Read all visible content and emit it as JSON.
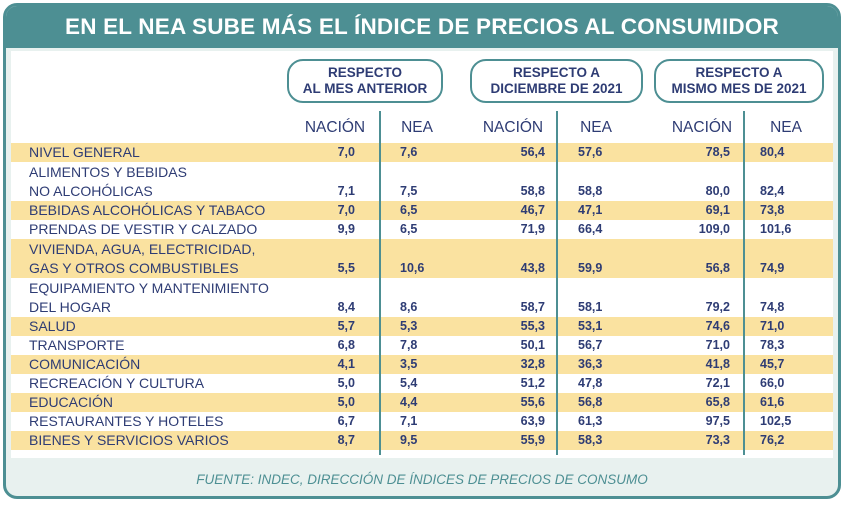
{
  "title": "EN EL NEA SUBE MÁS EL ÍNDICE DE PRECIOS AL CONSUMIDOR",
  "groups": [
    {
      "label": "RESPECTO\nAL MES ANTERIOR"
    },
    {
      "label": "RESPECTO A\nDICIEMBRE DE 2021"
    },
    {
      "label": "RESPECTO A\nMISMO MES DE 2021"
    }
  ],
  "sub_headers": [
    "NACIÓN",
    "NEA",
    "NACIÓN",
    "NEA",
    "NACIÓN",
    "NEA"
  ],
  "rows": [
    {
      "label": "NIVEL GENERAL",
      "values": [
        "7,0",
        "7,6",
        "56,4",
        "57,6",
        "78,5",
        "80,4"
      ]
    },
    {
      "label": "ALIMENTOS Y BEBIDAS\nNO ALCOHÓLICAS",
      "values": [
        "7,1",
        "7,5",
        "58,8",
        "58,8",
        "80,0",
        "82,4"
      ]
    },
    {
      "label": "BEBIDAS ALCOHÓLICAS Y TABACO",
      "values": [
        "7,0",
        "6,5",
        "46,7",
        "47,1",
        "69,1",
        "73,8"
      ]
    },
    {
      "label": "PRENDAS DE VESTIR Y CALZADO",
      "values": [
        "9,9",
        "6,5",
        "71,9",
        "66,4",
        "109,0",
        "101,6"
      ]
    },
    {
      "label": "VIVIENDA, AGUA, ELECTRICIDAD,\nGAS Y OTROS COMBUSTIBLES",
      "values": [
        "5,5",
        "10,6",
        "43,8",
        "59,9",
        "56,8",
        "74,9"
      ]
    },
    {
      "label": "EQUIPAMIENTO Y MANTENIMIENTO\nDEL HOGAR",
      "values": [
        "8,4",
        "8,6",
        "58,7",
        "58,1",
        "79,2",
        "74,8"
      ]
    },
    {
      "label": "SALUD",
      "values": [
        "5,7",
        "5,3",
        "55,3",
        "53,1",
        "74,6",
        "71,0"
      ]
    },
    {
      "label": "TRANSPORTE",
      "values": [
        "6,8",
        "7,8",
        "50,1",
        "56,7",
        "71,0",
        "78,3"
      ]
    },
    {
      "label": "COMUNICACIÓN",
      "values": [
        "4,1",
        "3,5",
        "32,8",
        "36,3",
        "41,8",
        "45,7"
      ]
    },
    {
      "label": "RECREACIÓN Y CULTURA",
      "values": [
        "5,0",
        "5,4",
        "51,2",
        "47,8",
        "72,1",
        "66,0"
      ]
    },
    {
      "label": "EDUCACIÓN",
      "values": [
        "5,0",
        "4,4",
        "55,6",
        "56,8",
        "65,8",
        "61,6"
      ]
    },
    {
      "label": "RESTAURANTES Y HOTELES",
      "values": [
        "6,7",
        "7,1",
        "63,9",
        "61,3",
        "97,5",
        "102,5"
      ]
    },
    {
      "label": "BIENES Y SERVICIOS VARIOS",
      "values": [
        "8,7",
        "9,5",
        "55,9",
        "58,3",
        "73,3",
        "76,2"
      ]
    }
  ],
  "source": "FUENTE: INDEC, DIRECCIÓN DE ÍNDICES DE PRECIOS DE CONSUMO",
  "colors": {
    "teal": "#4d8f93",
    "navy": "#2e3c74",
    "stripe": "#fae2a0",
    "frame_bg": "#e8f1ef"
  }
}
